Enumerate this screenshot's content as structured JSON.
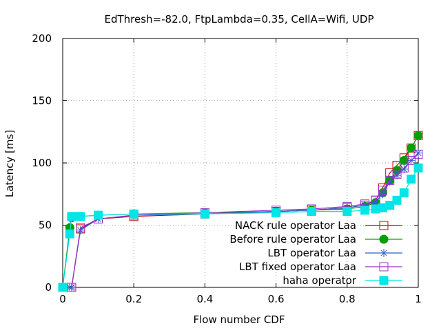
{
  "chart_data": {
    "type": "line",
    "title": "EdThresh=-82.0, FtpLambda=0.35, CellA=Wifi, UDP",
    "xlabel": "Flow number CDF",
    "ylabel": "Latency [ms]",
    "xlim": [
      0,
      1
    ],
    "ylim": [
      0,
      200
    ],
    "xticks": [
      "0",
      "0.2",
      "0.4",
      "0.6",
      "0.8",
      "1"
    ],
    "yticks": [
      "0",
      "50",
      "100",
      "150",
      "200"
    ],
    "grid": true,
    "legend_position": "bottom-right",
    "series": [
      {
        "name": "NACK rule operator Laa",
        "color": "#cc0000",
        "marker": "open-square",
        "x": [
          0,
          0.02,
          0.025,
          0.05,
          0.1,
          0.2,
          0.4,
          0.6,
          0.7,
          0.8,
          0.85,
          0.88,
          0.9,
          0.92,
          0.94,
          0.96,
          0.98,
          1.0
        ],
        "y": [
          0,
          0,
          0,
          47,
          55,
          57,
          59,
          61,
          62,
          64,
          66,
          70,
          80,
          92,
          98,
          104,
          112,
          122
        ]
      },
      {
        "name": "Before rule operator Laa",
        "color": "#00a000",
        "marker": "filled-circle",
        "x": [
          0,
          0.02,
          0.025,
          0.05,
          0.1,
          0.2,
          0.4,
          0.6,
          0.7,
          0.8,
          0.85,
          0.88,
          0.9,
          0.92,
          0.94,
          0.96,
          0.98,
          1.0
        ],
        "y": [
          0,
          48,
          56,
          57,
          58,
          59,
          60,
          61,
          62,
          63,
          65,
          68,
          76,
          86,
          94,
          102,
          112,
          122
        ]
      },
      {
        "name": "LBT operator Laa",
        "color": "#2a5fcf",
        "marker": "star",
        "x": [
          0,
          0.02,
          0.025,
          0.05,
          0.1,
          0.2,
          0.4,
          0.6,
          0.7,
          0.8,
          0.85,
          0.88,
          0.9,
          0.92,
          0.94,
          0.96,
          0.98,
          1.0
        ],
        "y": [
          0,
          0,
          0,
          46,
          55,
          58,
          59,
          61,
          62,
          64,
          66,
          69,
          75,
          85,
          90,
          95,
          102,
          108
        ]
      },
      {
        "name": "LBT fixed operator Laa",
        "color": "#9933cc",
        "marker": "open-square",
        "x": [
          0,
          0.02,
          0.025,
          0.05,
          0.1,
          0.2,
          0.4,
          0.6,
          0.7,
          0.8,
          0.85,
          0.88,
          0.9,
          0.92,
          0.94,
          0.96,
          0.98,
          1.0
        ],
        "y": [
          0,
          0,
          0,
          48,
          55,
          58,
          60,
          62,
          63,
          65,
          67,
          70,
          78,
          86,
          91,
          96,
          102,
          107
        ]
      },
      {
        "name": "haha operator",
        "color": "#00e5e5",
        "marker": "filled-square",
        "x": [
          0,
          0.02,
          0.025,
          0.05,
          0.1,
          0.2,
          0.4,
          0.6,
          0.7,
          0.8,
          0.85,
          0.88,
          0.9,
          0.92,
          0.94,
          0.96,
          0.98,
          1.0
        ],
        "y": [
          0,
          43,
          57,
          57,
          58,
          59,
          59,
          60,
          61,
          61,
          62,
          63,
          64,
          66,
          70,
          76,
          87,
          96
        ]
      }
    ]
  }
}
